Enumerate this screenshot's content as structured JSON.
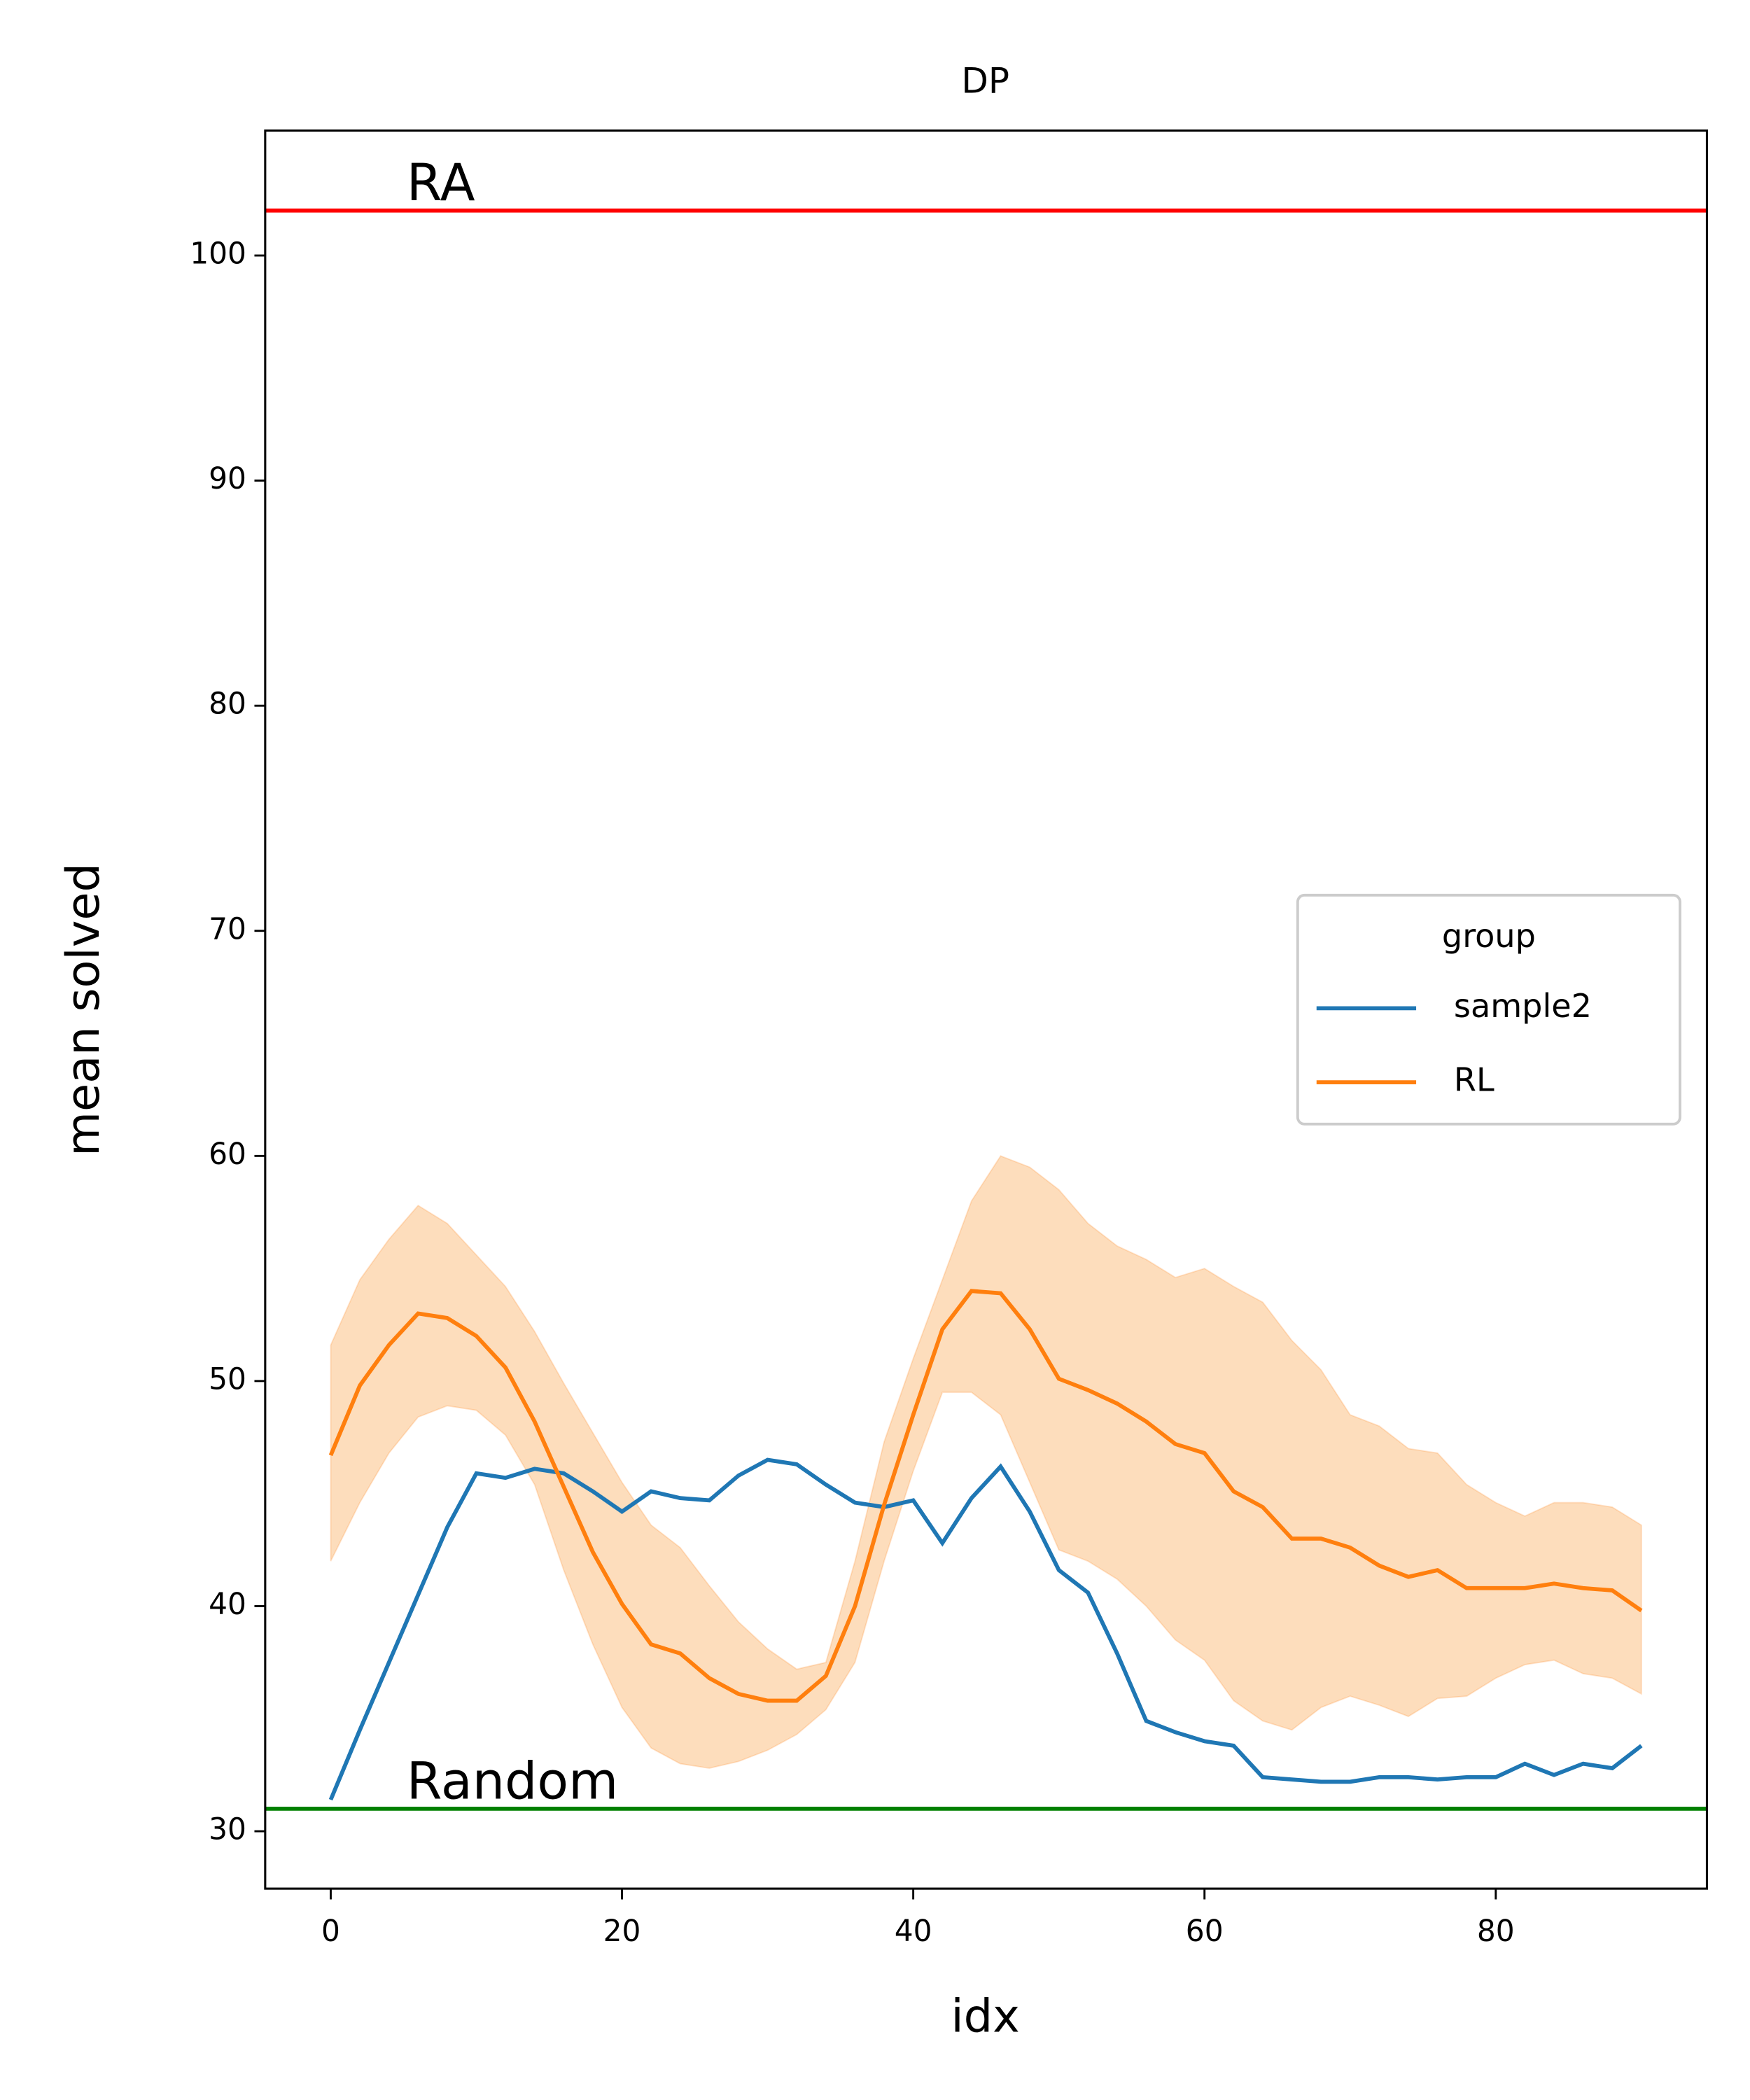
{
  "chart_data": {
    "type": "line",
    "title": "DP",
    "x_label": "idx",
    "y_label": "mean solved",
    "x": [
      0,
      2,
      4,
      6,
      8,
      10,
      12,
      14,
      16,
      18,
      20,
      22,
      24,
      26,
      28,
      30,
      32,
      34,
      36,
      38,
      40,
      42,
      44,
      46,
      48,
      50,
      52,
      54,
      56,
      58,
      60,
      62,
      64,
      66,
      68,
      70,
      72,
      74,
      76,
      78,
      80,
      82,
      84,
      86,
      88,
      90
    ],
    "series": [
      {
        "name": "sample2",
        "color": "#1f77b4",
        "values": [
          31.4,
          34.5,
          37.5,
          40.5,
          43.5,
          45.9,
          45.7,
          46.1,
          45.9,
          45.1,
          44.2,
          45.1,
          44.8,
          44.7,
          45.8,
          46.5,
          46.3,
          45.4,
          44.6,
          44.4,
          44.7,
          42.8,
          44.8,
          46.2,
          44.2,
          41.6,
          40.6,
          37.9,
          34.9,
          34.4,
          34.0,
          33.8,
          32.4,
          32.3,
          32.2,
          32.2,
          32.4,
          32.4,
          32.3,
          32.4,
          32.4,
          33.0,
          32.5,
          33.0,
          32.8,
          33.8
        ]
      },
      {
        "name": "RL",
        "color": "#ff7f0e",
        "band_color": "#fdd9b5",
        "values": [
          46.7,
          49.8,
          51.6,
          53.0,
          52.8,
          52.0,
          50.6,
          48.2,
          45.3,
          42.4,
          40.1,
          38.3,
          37.9,
          36.8,
          36.1,
          35.8,
          35.8,
          36.9,
          40.0,
          44.5,
          48.5,
          52.3,
          54.0,
          53.9,
          52.3,
          50.1,
          49.6,
          49.0,
          48.2,
          47.2,
          46.8,
          45.1,
          44.4,
          43.0,
          43.0,
          42.6,
          41.8,
          41.3,
          41.6,
          40.8,
          40.8,
          40.8,
          41.0,
          40.8,
          40.7,
          39.8
        ],
        "upper": [
          51.6,
          54.5,
          56.3,
          57.8,
          57.0,
          55.6,
          54.2,
          52.2,
          49.9,
          47.7,
          45.5,
          43.6,
          42.6,
          40.9,
          39.3,
          38.1,
          37.2,
          37.5,
          42.0,
          47.3,
          51.0,
          54.5,
          58.0,
          60.0,
          59.5,
          58.5,
          57.0,
          56.0,
          55.4,
          54.6,
          55.0,
          54.2,
          53.5,
          51.8,
          50.5,
          48.5,
          48.0,
          47.0,
          46.8,
          45.4,
          44.6,
          44.0,
          44.6,
          44.6,
          44.4,
          43.6
        ],
        "lower": [
          42.0,
          44.6,
          46.8,
          48.4,
          48.9,
          48.7,
          47.6,
          45.4,
          41.6,
          38.3,
          35.5,
          33.7,
          33.0,
          32.8,
          33.1,
          33.6,
          34.3,
          35.4,
          37.5,
          42.0,
          46.0,
          49.5,
          49.5,
          48.5,
          45.5,
          42.5,
          42.0,
          41.2,
          40.0,
          38.5,
          37.6,
          35.8,
          34.9,
          34.5,
          35.5,
          36.0,
          35.6,
          35.1,
          35.9,
          36.0,
          36.8,
          37.4,
          37.6,
          37.0,
          36.8,
          36.1
        ]
      }
    ],
    "hlines": [
      {
        "label": "RA",
        "value": 102,
        "color": "#ff0000"
      },
      {
        "label": "Random",
        "value": 31,
        "color": "#008000"
      }
    ],
    "xlim": [
      -4.5,
      94.5
    ],
    "ylim": [
      27.45,
      105.55
    ],
    "xticks": [
      0,
      20,
      40,
      60,
      80
    ],
    "yticks": [
      30,
      40,
      50,
      60,
      70,
      80,
      90,
      100
    ],
    "legend": {
      "title": "group",
      "position": "center right"
    }
  }
}
